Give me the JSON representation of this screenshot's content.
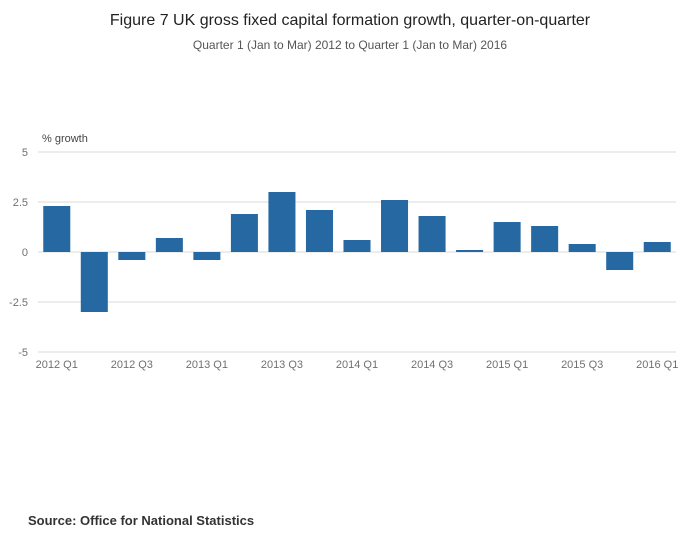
{
  "chart_data": {
    "type": "bar",
    "title": "Figure 7 UK gross fixed capital formation growth, quarter-on-quarter",
    "subtitle": "Quarter 1 (Jan to Mar) 2012 to Quarter 1 (Jan to Mar) 2016",
    "ylabel": "% growth",
    "xlabel": "",
    "ylim": [
      -5,
      5
    ],
    "yticks": [
      5,
      2.5,
      0,
      -2.5,
      -5
    ],
    "ytick_labels": [
      "5",
      "2.5",
      "0",
      "-2.5",
      "-5"
    ],
    "categories": [
      "2012 Q1",
      "2012 Q2",
      "2012 Q3",
      "2012 Q4",
      "2013 Q1",
      "2013 Q2",
      "2013 Q3",
      "2013 Q4",
      "2014 Q1",
      "2014 Q2",
      "2014 Q3",
      "2014 Q4",
      "2015 Q1",
      "2015 Q2",
      "2015 Q3",
      "2015 Q4",
      "2016 Q1"
    ],
    "x_tick_labels": [
      "2012 Q1",
      "2012 Q3",
      "2013 Q1",
      "2013 Q3",
      "2014 Q1",
      "2014 Q3",
      "2015 Q1",
      "2015 Q3",
      "2016 Q1"
    ],
    "values": [
      2.3,
      -3.0,
      -0.4,
      0.7,
      -0.4,
      1.9,
      3.0,
      2.1,
      0.6,
      2.6,
      1.8,
      0.1,
      1.5,
      1.3,
      0.4,
      -0.9,
      0.5
    ],
    "bar_color": "#2568a2",
    "gridline_color": "#d9d9d9",
    "tick_text_color": "#707070",
    "axis_label_color": "#444444",
    "grid": true,
    "legend_position": "none"
  },
  "footer": {
    "source": "Source: Office for National Statistics"
  }
}
